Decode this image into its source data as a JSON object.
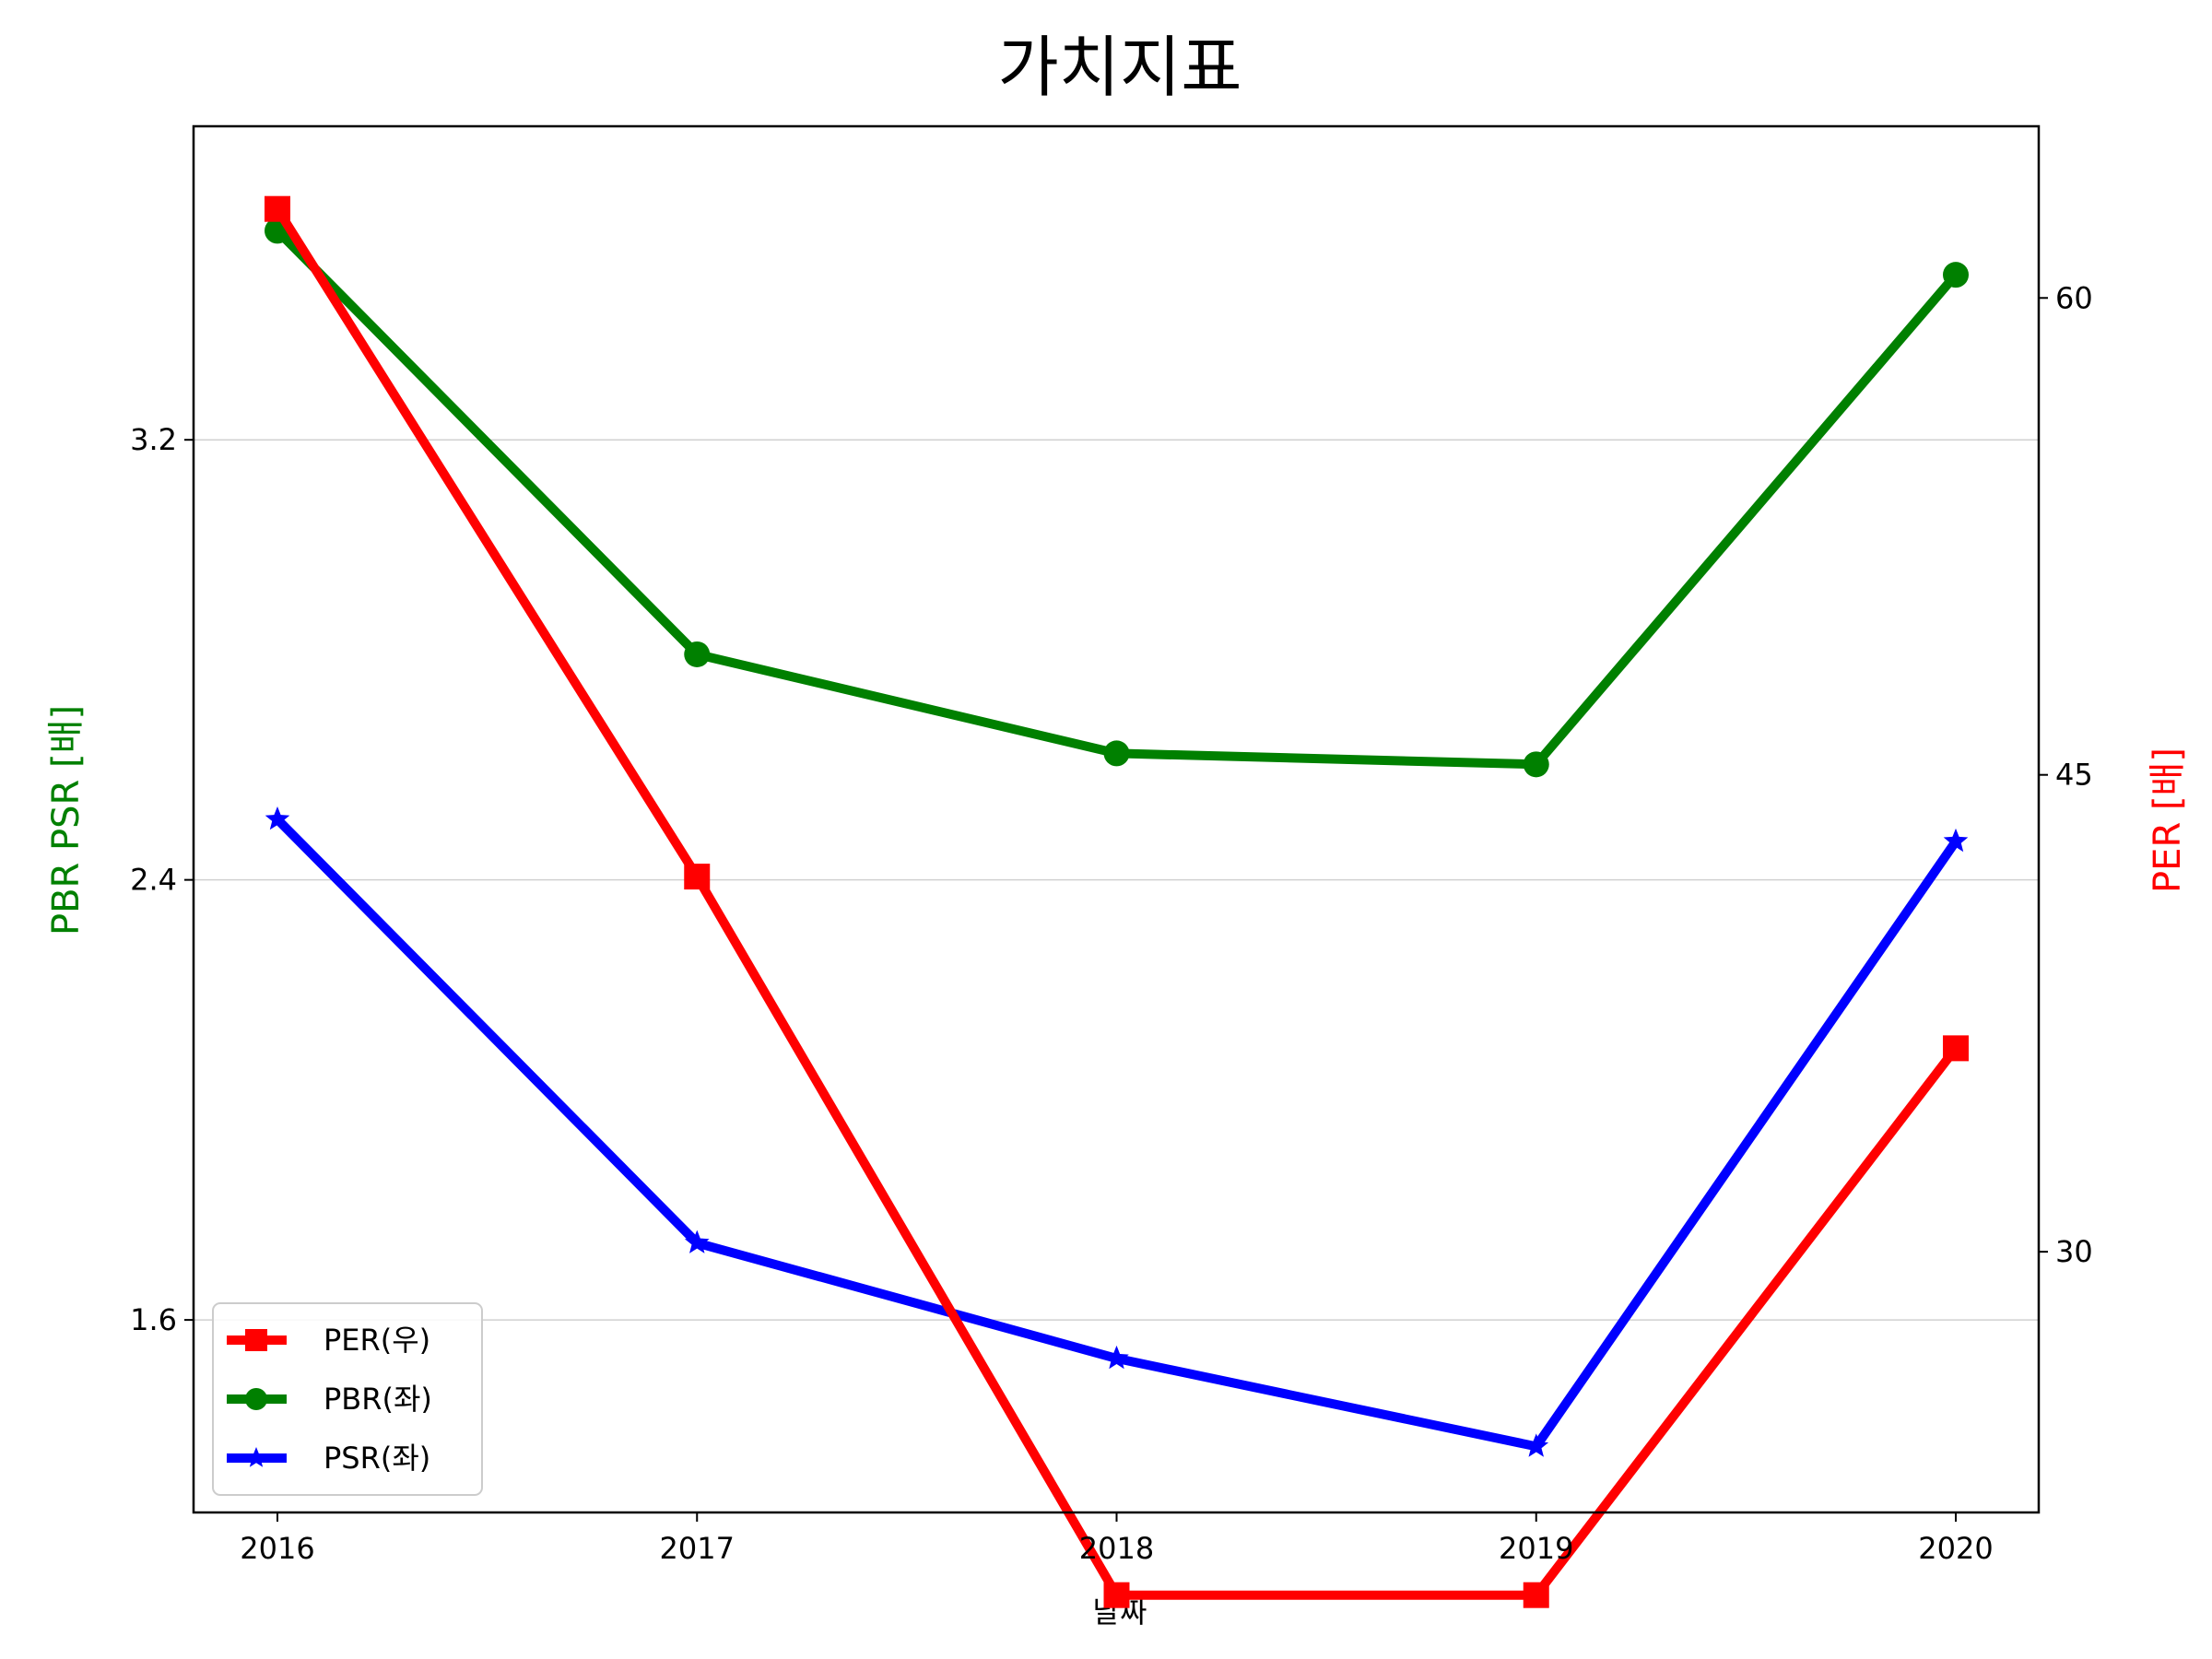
{
  "chart_data": {
    "type": "line",
    "title": "가치지표",
    "xlabel": "날짜",
    "ylabel_left": "PBR PSR [배]",
    "ylabel_right": "PER [배]",
    "categories": [
      "2016",
      "2017",
      "2018",
      "2019",
      "2020"
    ],
    "left_axis": {
      "ylim": [
        1.25,
        3.77
      ],
      "ticks": [
        1.6,
        2.4,
        3.2
      ],
      "tick_labels": [
        "1.6",
        "2.4",
        "3.2"
      ]
    },
    "right_axis": {
      "ylim": [
        21.8,
        65.4
      ],
      "ticks": [
        30,
        45,
        60
      ],
      "tick_labels": [
        "30",
        "45",
        "60"
      ]
    },
    "grid": "horizontal (left axis ticks)",
    "legend_position": "lower-left",
    "series": [
      {
        "name": "PER(우)",
        "axis": "right",
        "color": "#ff0000",
        "marker": "square",
        "values": [
          62.8,
          41.8,
          19.2,
          19.2,
          36.4
        ]
      },
      {
        "name": "PBR(좌)",
        "axis": "left",
        "color": "#008000",
        "marker": "circle",
        "values": [
          3.58,
          2.81,
          2.63,
          2.61,
          3.5
        ]
      },
      {
        "name": "PSR(좌)",
        "axis": "left",
        "color": "#0000ff",
        "marker": "star",
        "values": [
          2.51,
          1.74,
          1.53,
          1.37,
          2.47
        ]
      }
    ]
  }
}
